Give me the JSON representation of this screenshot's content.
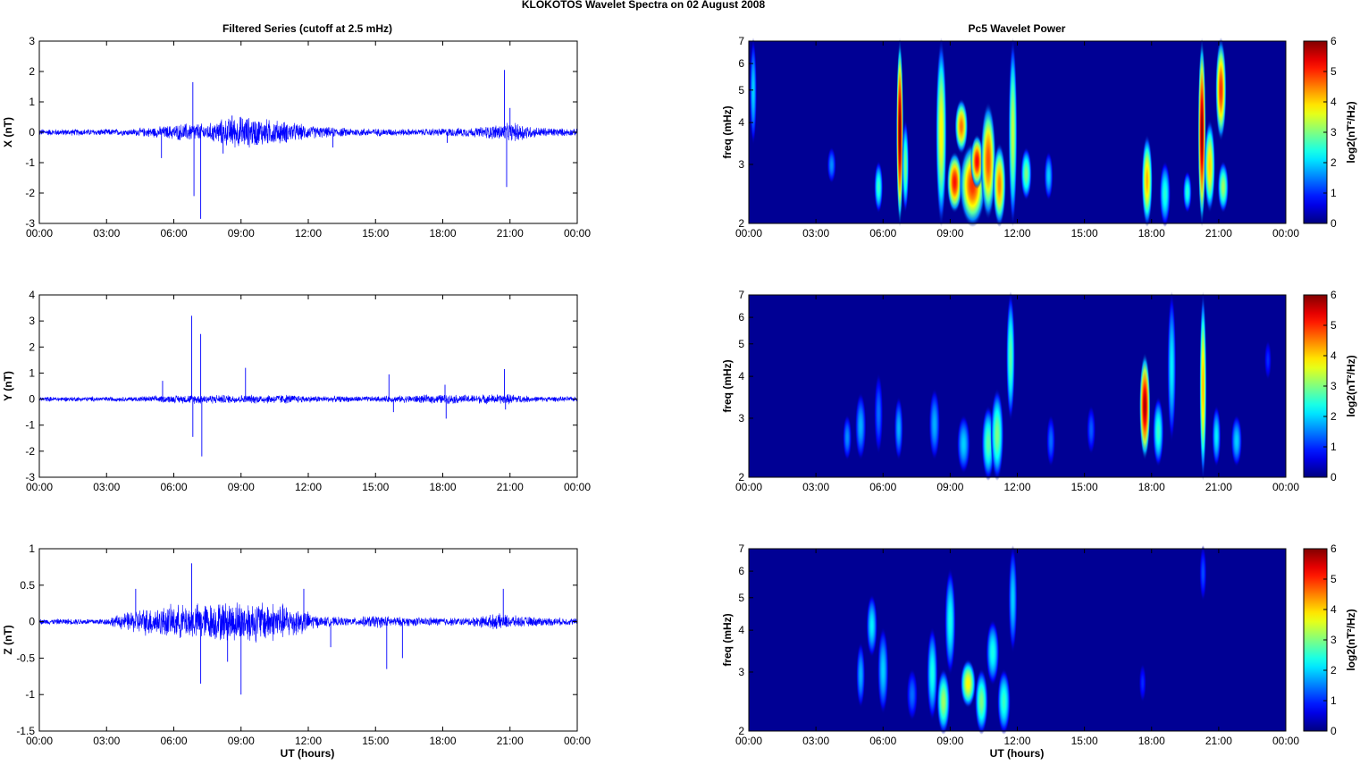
{
  "figure": {
    "title": "KLOKOTOS Wavelet Spectra on 02 August    2008",
    "left_title": "Filtered Series (cutoff at 2.5 mHz)",
    "right_title": "Pc5 Wavelet Power",
    "xlabel": "UT (hours)"
  },
  "chart_data": [
    {
      "type": "line",
      "component": "X",
      "ylabel": "X (nT)",
      "ylim": [
        -3,
        3
      ],
      "yticks": [
        "3",
        "2",
        "1",
        "0",
        "-1",
        "-2",
        "-3"
      ],
      "xticks": [
        "00:00",
        "03:00",
        "06:00",
        "09:00",
        "12:00",
        "15:00",
        "18:00",
        "21:00",
        "00:00"
      ],
      "xlim_hours": [
        0,
        24
      ],
      "line_color": "#0000ff",
      "envelope": [
        [
          0,
          0.12
        ],
        [
          4,
          0.12
        ],
        [
          5.5,
          0.22
        ],
        [
          6.2,
          0.3
        ],
        [
          6.8,
          0.35
        ],
        [
          7.5,
          0.3
        ],
        [
          8,
          0.45
        ],
        [
          9,
          0.6
        ],
        [
          10,
          0.5
        ],
        [
          11,
          0.4
        ],
        [
          12,
          0.25
        ],
        [
          13,
          0.18
        ],
        [
          14,
          0.15
        ],
        [
          17,
          0.12
        ],
        [
          18,
          0.15
        ],
        [
          19.5,
          0.18
        ],
        [
          20.5,
          0.3
        ],
        [
          21.5,
          0.35
        ],
        [
          22,
          0.2
        ],
        [
          24,
          0.12
        ]
      ],
      "spikes": [
        [
          5.45,
          -0.85
        ],
        [
          6.85,
          1.65
        ],
        [
          6.9,
          -2.1
        ],
        [
          7.2,
          -2.85
        ],
        [
          8.2,
          -0.7
        ],
        [
          8.6,
          0.55
        ],
        [
          13.1,
          -0.5
        ],
        [
          18.2,
          -0.35
        ],
        [
          20.75,
          2.05
        ],
        [
          20.85,
          -1.8
        ],
        [
          21,
          0.8
        ]
      ]
    },
    {
      "type": "line",
      "component": "Y",
      "ylabel": "Y (nT)",
      "ylim": [
        -3,
        4
      ],
      "yticks": [
        "4",
        "3",
        "2",
        "1",
        "0",
        "-1",
        "-2",
        "-3"
      ],
      "xticks": [
        "00:00",
        "03:00",
        "06:00",
        "09:00",
        "12:00",
        "15:00",
        "18:00",
        "21:00",
        "00:00"
      ],
      "xlim_hours": [
        0,
        24
      ],
      "line_color": "#0000ff",
      "envelope": [
        [
          0,
          0.1
        ],
        [
          4,
          0.1
        ],
        [
          5.5,
          0.15
        ],
        [
          7,
          0.2
        ],
        [
          9,
          0.18
        ],
        [
          11,
          0.2
        ],
        [
          12,
          0.14
        ],
        [
          15,
          0.12
        ],
        [
          18,
          0.2
        ],
        [
          19,
          0.18
        ],
        [
          21,
          0.22
        ],
        [
          22,
          0.12
        ],
        [
          24,
          0.1
        ]
      ],
      "spikes": [
        [
          5.5,
          0.7
        ],
        [
          6.8,
          3.2
        ],
        [
          6.85,
          -1.45
        ],
        [
          7.2,
          2.5
        ],
        [
          7.25,
          -2.2
        ],
        [
          9.2,
          1.2
        ],
        [
          15.6,
          0.95
        ],
        [
          15.8,
          -0.5
        ],
        [
          18.1,
          0.55
        ],
        [
          18.15,
          -0.75
        ],
        [
          20.75,
          1.15
        ],
        [
          20.8,
          -0.4
        ]
      ]
    },
    {
      "type": "line",
      "component": "Z",
      "ylabel": "Z (nT)",
      "ylim": [
        -1.5,
        1
      ],
      "yticks": [
        "1",
        "0.5",
        "0",
        "-0.5",
        "-1",
        "-1.5"
      ],
      "xticks": [
        "00:00",
        "03:00",
        "06:00",
        "09:00",
        "12:00",
        "15:00",
        "18:00",
        "21:00",
        "00:00"
      ],
      "xlim_hours": [
        0,
        24
      ],
      "line_color": "#0000ff",
      "envelope": [
        [
          0,
          0.04
        ],
        [
          3,
          0.05
        ],
        [
          4.5,
          0.2
        ],
        [
          6,
          0.25
        ],
        [
          7.5,
          0.28
        ],
        [
          9,
          0.32
        ],
        [
          10.5,
          0.3
        ],
        [
          11.5,
          0.22
        ],
        [
          12.5,
          0.08
        ],
        [
          14,
          0.06
        ],
        [
          15,
          0.1
        ],
        [
          16,
          0.07
        ],
        [
          19,
          0.06
        ],
        [
          20.5,
          0.12
        ],
        [
          21.5,
          0.08
        ],
        [
          24,
          0.05
        ]
      ],
      "spikes": [
        [
          4.3,
          0.45
        ],
        [
          6.8,
          0.8
        ],
        [
          7.2,
          -0.85
        ],
        [
          9.0,
          -1.0
        ],
        [
          11.8,
          0.45
        ],
        [
          15.5,
          -0.65
        ],
        [
          16.2,
          -0.5
        ],
        [
          20.7,
          0.45
        ],
        [
          13.0,
          -0.35
        ],
        [
          8.4,
          -0.55
        ]
      ]
    },
    {
      "type": "heatmap",
      "component": "X",
      "ylabel": "freq (mHz)",
      "y_scale": "log",
      "ylim_mhz": [
        2,
        7
      ],
      "yticks": [
        "7",
        "6",
        "5",
        "4",
        "3",
        "2"
      ],
      "xticks": [
        "00:00",
        "03:00",
        "06:00",
        "09:00",
        "12:00",
        "15:00",
        "18:00",
        "21:00",
        "00:00"
      ],
      "xlim_hours": [
        0,
        24
      ],
      "colorbar_label": "log2(nT²/Hz)",
      "colorbar_ticks": [
        "6",
        "5",
        "4",
        "3",
        "2",
        "1",
        "0"
      ],
      "color_range": [
        0,
        6
      ],
      "blobs": [
        [
          6.75,
          2.0,
          7.0,
          0.15,
          6.2
        ],
        [
          7.0,
          2.2,
          4.0,
          0.15,
          3.0
        ],
        [
          8.6,
          2.0,
          7.0,
          0.25,
          3.8
        ],
        [
          9.2,
          2.2,
          3.2,
          0.35,
          5.2
        ],
        [
          9.5,
          3.3,
          4.6,
          0.3,
          4.6
        ],
        [
          10.0,
          2.0,
          3.4,
          0.6,
          5.0
        ],
        [
          10.2,
          2.6,
          3.6,
          0.3,
          5.3
        ],
        [
          10.7,
          2.1,
          4.5,
          0.35,
          4.8
        ],
        [
          11.2,
          2.0,
          3.4,
          0.3,
          4.5
        ],
        [
          11.8,
          2.0,
          7.0,
          0.2,
          3.4
        ],
        [
          12.4,
          2.4,
          3.3,
          0.25,
          3.0
        ],
        [
          13.4,
          2.4,
          3.2,
          0.2,
          2.0
        ],
        [
          17.8,
          2.0,
          3.6,
          0.25,
          4.2
        ],
        [
          18.6,
          2.0,
          3.0,
          0.25,
          2.5
        ],
        [
          20.25,
          2.0,
          7.0,
          0.18,
          6.0
        ],
        [
          20.6,
          2.2,
          4.0,
          0.25,
          4.0
        ],
        [
          21.1,
          3.6,
          7.0,
          0.25,
          5.0
        ],
        [
          21.2,
          2.2,
          3.0,
          0.25,
          3.2
        ],
        [
          19.6,
          2.2,
          2.8,
          0.2,
          2.5
        ],
        [
          5.8,
          2.2,
          3.0,
          0.2,
          2.6
        ],
        [
          0.2,
          3.5,
          7.0,
          0.12,
          2.0
        ],
        [
          3.7,
          2.7,
          3.3,
          0.2,
          1.6
        ]
      ]
    },
    {
      "type": "heatmap",
      "component": "Y",
      "ylabel": "freq (mHz)",
      "y_scale": "log",
      "ylim_mhz": [
        2,
        7
      ],
      "yticks": [
        "7",
        "6",
        "5",
        "4",
        "3",
        "2"
      ],
      "xticks": [
        "00:00",
        "03:00",
        "06:00",
        "09:00",
        "12:00",
        "15:00",
        "18:00",
        "21:00",
        "00:00"
      ],
      "xlim_hours": [
        0,
        24
      ],
      "colorbar_label": "log2(nT²/Hz)",
      "colorbar_ticks": [
        "6",
        "5",
        "4",
        "3",
        "2",
        "1",
        "0"
      ],
      "color_range": [
        0,
        6
      ],
      "blobs": [
        [
          4.4,
          2.3,
          3.0,
          0.2,
          1.6
        ],
        [
          5.0,
          2.3,
          3.5,
          0.25,
          1.8
        ],
        [
          5.8,
          2.4,
          4.0,
          0.2,
          1.4
        ],
        [
          6.7,
          2.3,
          3.4,
          0.2,
          1.8
        ],
        [
          8.3,
          2.3,
          3.6,
          0.25,
          1.8
        ],
        [
          9.6,
          2.1,
          3.0,
          0.3,
          2.0
        ],
        [
          10.7,
          2.0,
          3.2,
          0.3,
          2.8
        ],
        [
          11.1,
          2.0,
          3.6,
          0.3,
          3.0
        ],
        [
          11.7,
          3.0,
          7.0,
          0.2,
          2.8
        ],
        [
          13.5,
          2.2,
          3.0,
          0.2,
          1.4
        ],
        [
          15.3,
          2.4,
          3.2,
          0.2,
          1.3
        ],
        [
          17.7,
          2.3,
          4.6,
          0.25,
          5.8
        ],
        [
          18.3,
          2.2,
          3.4,
          0.25,
          2.6
        ],
        [
          18.9,
          2.6,
          7.0,
          0.2,
          2.2
        ],
        [
          20.3,
          2.0,
          7.0,
          0.15,
          4.2
        ],
        [
          20.9,
          2.2,
          3.2,
          0.2,
          2.2
        ],
        [
          21.8,
          2.2,
          3.0,
          0.25,
          2.0
        ],
        [
          23.2,
          4.0,
          5.0,
          0.15,
          1.0
        ]
      ]
    },
    {
      "type": "heatmap",
      "component": "Z",
      "ylabel": "freq (mHz)",
      "y_scale": "log",
      "ylim_mhz": [
        2,
        7
      ],
      "yticks": [
        "7",
        "6",
        "5",
        "4",
        "3",
        "2"
      ],
      "xticks": [
        "00:00",
        "03:00",
        "06:00",
        "09:00",
        "12:00",
        "15:00",
        "18:00",
        "21:00",
        "00:00"
      ],
      "xlim_hours": [
        0,
        24
      ],
      "colorbar_label": "log2(nT²/Hz)",
      "colorbar_ticks": [
        "6",
        "5",
        "4",
        "3",
        "2",
        "1",
        "0"
      ],
      "color_range": [
        0,
        6
      ],
      "blobs": [
        [
          5.0,
          2.4,
          3.6,
          0.2,
          1.8
        ],
        [
          5.5,
          3.4,
          5.0,
          0.25,
          2.2
        ],
        [
          6.0,
          2.3,
          4.0,
          0.25,
          2.0
        ],
        [
          7.3,
          2.2,
          3.0,
          0.25,
          1.4
        ],
        [
          8.2,
          2.2,
          4.0,
          0.25,
          2.4
        ],
        [
          8.7,
          2.0,
          3.0,
          0.3,
          3.2
        ],
        [
          9.0,
          3.0,
          6.0,
          0.25,
          2.4
        ],
        [
          9.8,
          2.4,
          3.2,
          0.35,
          3.8
        ],
        [
          10.4,
          2.0,
          3.0,
          0.3,
          3.0
        ],
        [
          10.9,
          2.8,
          4.2,
          0.3,
          2.4
        ],
        [
          11.4,
          2.0,
          3.0,
          0.3,
          2.6
        ],
        [
          11.8,
          3.5,
          7.0,
          0.2,
          2.0
        ],
        [
          17.6,
          2.5,
          3.1,
          0.12,
          1.0
        ],
        [
          20.3,
          5.0,
          7.0,
          0.12,
          1.2
        ]
      ]
    }
  ]
}
